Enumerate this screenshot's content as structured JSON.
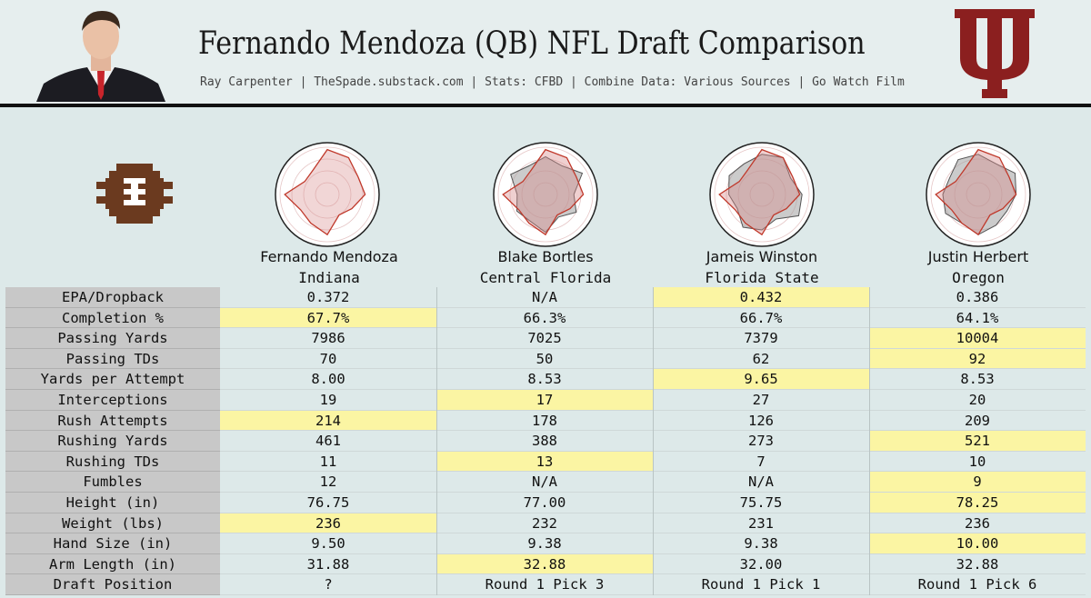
{
  "header": {
    "title": "Fernando Mendoza (QB) NFL Draft Comparison",
    "subtitle": "Ray Carpenter | TheSpade.substack.com | Stats: CFBD | Combine Data: Various Sources | Go Watch Film",
    "logo_letters": "IU"
  },
  "colors": {
    "background": "#dde9e9",
    "highlight": "#fbf5a3",
    "label_bg": "#c8c8c8",
    "iu_crimson": "#8b1f1f",
    "radar_fill_primary": "#d88a8a",
    "radar_fill_comp": "#a0a0a0",
    "ncaa_brown": "#6b3a1f"
  },
  "players": [
    {
      "name": "Fernando Mendoza",
      "school": "Indiana",
      "icon": "radar-chart-mendoza"
    },
    {
      "name": "Blake Bortles",
      "school": "Central Florida",
      "icon": "radar-chart-bortles"
    },
    {
      "name": "Jameis Winston",
      "school": "Florida State",
      "icon": "radar-chart-winston"
    },
    {
      "name": "Justin Herbert",
      "school": "Oregon",
      "icon": "radar-chart-herbert"
    }
  ],
  "chart_data": {
    "type": "table",
    "columns": [
      "Fernando Mendoza",
      "Blake Bortles",
      "Jameis Winston",
      "Justin Herbert"
    ],
    "rows": [
      {
        "label": "EPA/Dropback",
        "values": [
          "0.372",
          "N/A",
          "0.432",
          "0.386"
        ],
        "highlight": 2
      },
      {
        "label": "Completion %",
        "values": [
          "67.7%",
          "66.3%",
          "66.7%",
          "64.1%"
        ],
        "highlight": 0
      },
      {
        "label": "Passing Yards",
        "values": [
          "7986",
          "7025",
          "7379",
          "10004"
        ],
        "highlight": 3
      },
      {
        "label": "Passing TDs",
        "values": [
          "70",
          "50",
          "62",
          "92"
        ],
        "highlight": 3
      },
      {
        "label": "Yards per Attempt",
        "values": [
          "8.00",
          "8.53",
          "9.65",
          "8.53"
        ],
        "highlight": 2
      },
      {
        "label": "Interceptions",
        "values": [
          "19",
          "17",
          "27",
          "20"
        ],
        "highlight": 1
      },
      {
        "label": "Rush Attempts",
        "values": [
          "214",
          "178",
          "126",
          "209"
        ],
        "highlight": 0
      },
      {
        "label": "Rushing Yards",
        "values": [
          "461",
          "388",
          "273",
          "521"
        ],
        "highlight": 3
      },
      {
        "label": "Rushing TDs",
        "values": [
          "11",
          "13",
          "7",
          "10"
        ],
        "highlight": 1
      },
      {
        "label": "Fumbles",
        "values": [
          "12",
          "N/A",
          "N/A",
          "9"
        ],
        "highlight": 3
      },
      {
        "label": "Height (in)",
        "values": [
          "76.75",
          "77.00",
          "75.75",
          "78.25"
        ],
        "highlight": 3
      },
      {
        "label": "Weight (lbs)",
        "values": [
          "236",
          "232",
          "231",
          "236"
        ],
        "highlight": 0
      },
      {
        "label": "Hand Size (in)",
        "values": [
          "9.50",
          "9.38",
          "9.38",
          "10.00"
        ],
        "highlight": 3
      },
      {
        "label": "Arm Length (in)",
        "values": [
          "31.88",
          "32.88",
          "32.00",
          "32.88"
        ],
        "highlight": 1
      },
      {
        "label": "Draft Position",
        "values": [
          "?",
          "Round 1 Pick 3",
          "Round 1 Pick 1",
          "Round 1 Pick 6"
        ],
        "highlight": -1
      }
    ],
    "radar_series": [
      {
        "player": "Fernando Mendoza",
        "values": [
          0.95,
          0.9,
          0.75,
          0.8,
          0.6,
          0.5,
          0.85,
          0.7,
          0.65,
          0.9,
          0.55,
          0.6
        ]
      },
      {
        "player": "Blake Bortles",
        "values": [
          0.8,
          0.7,
          0.9,
          0.6,
          0.75,
          0.55,
          0.8,
          0.65,
          0.7,
          0.6,
          0.85,
          0.7
        ]
      },
      {
        "player": "Jameis Winston",
        "values": [
          0.85,
          0.9,
          0.7,
          0.85,
          0.9,
          0.6,
          0.75,
          0.8,
          0.6,
          0.7,
          0.8,
          0.75
        ]
      },
      {
        "player": "Justin Herbert",
        "values": [
          0.85,
          0.75,
          0.9,
          0.8,
          0.7,
          0.75,
          0.85,
          0.7,
          0.8,
          0.75,
          0.7,
          0.85
        ]
      }
    ]
  }
}
